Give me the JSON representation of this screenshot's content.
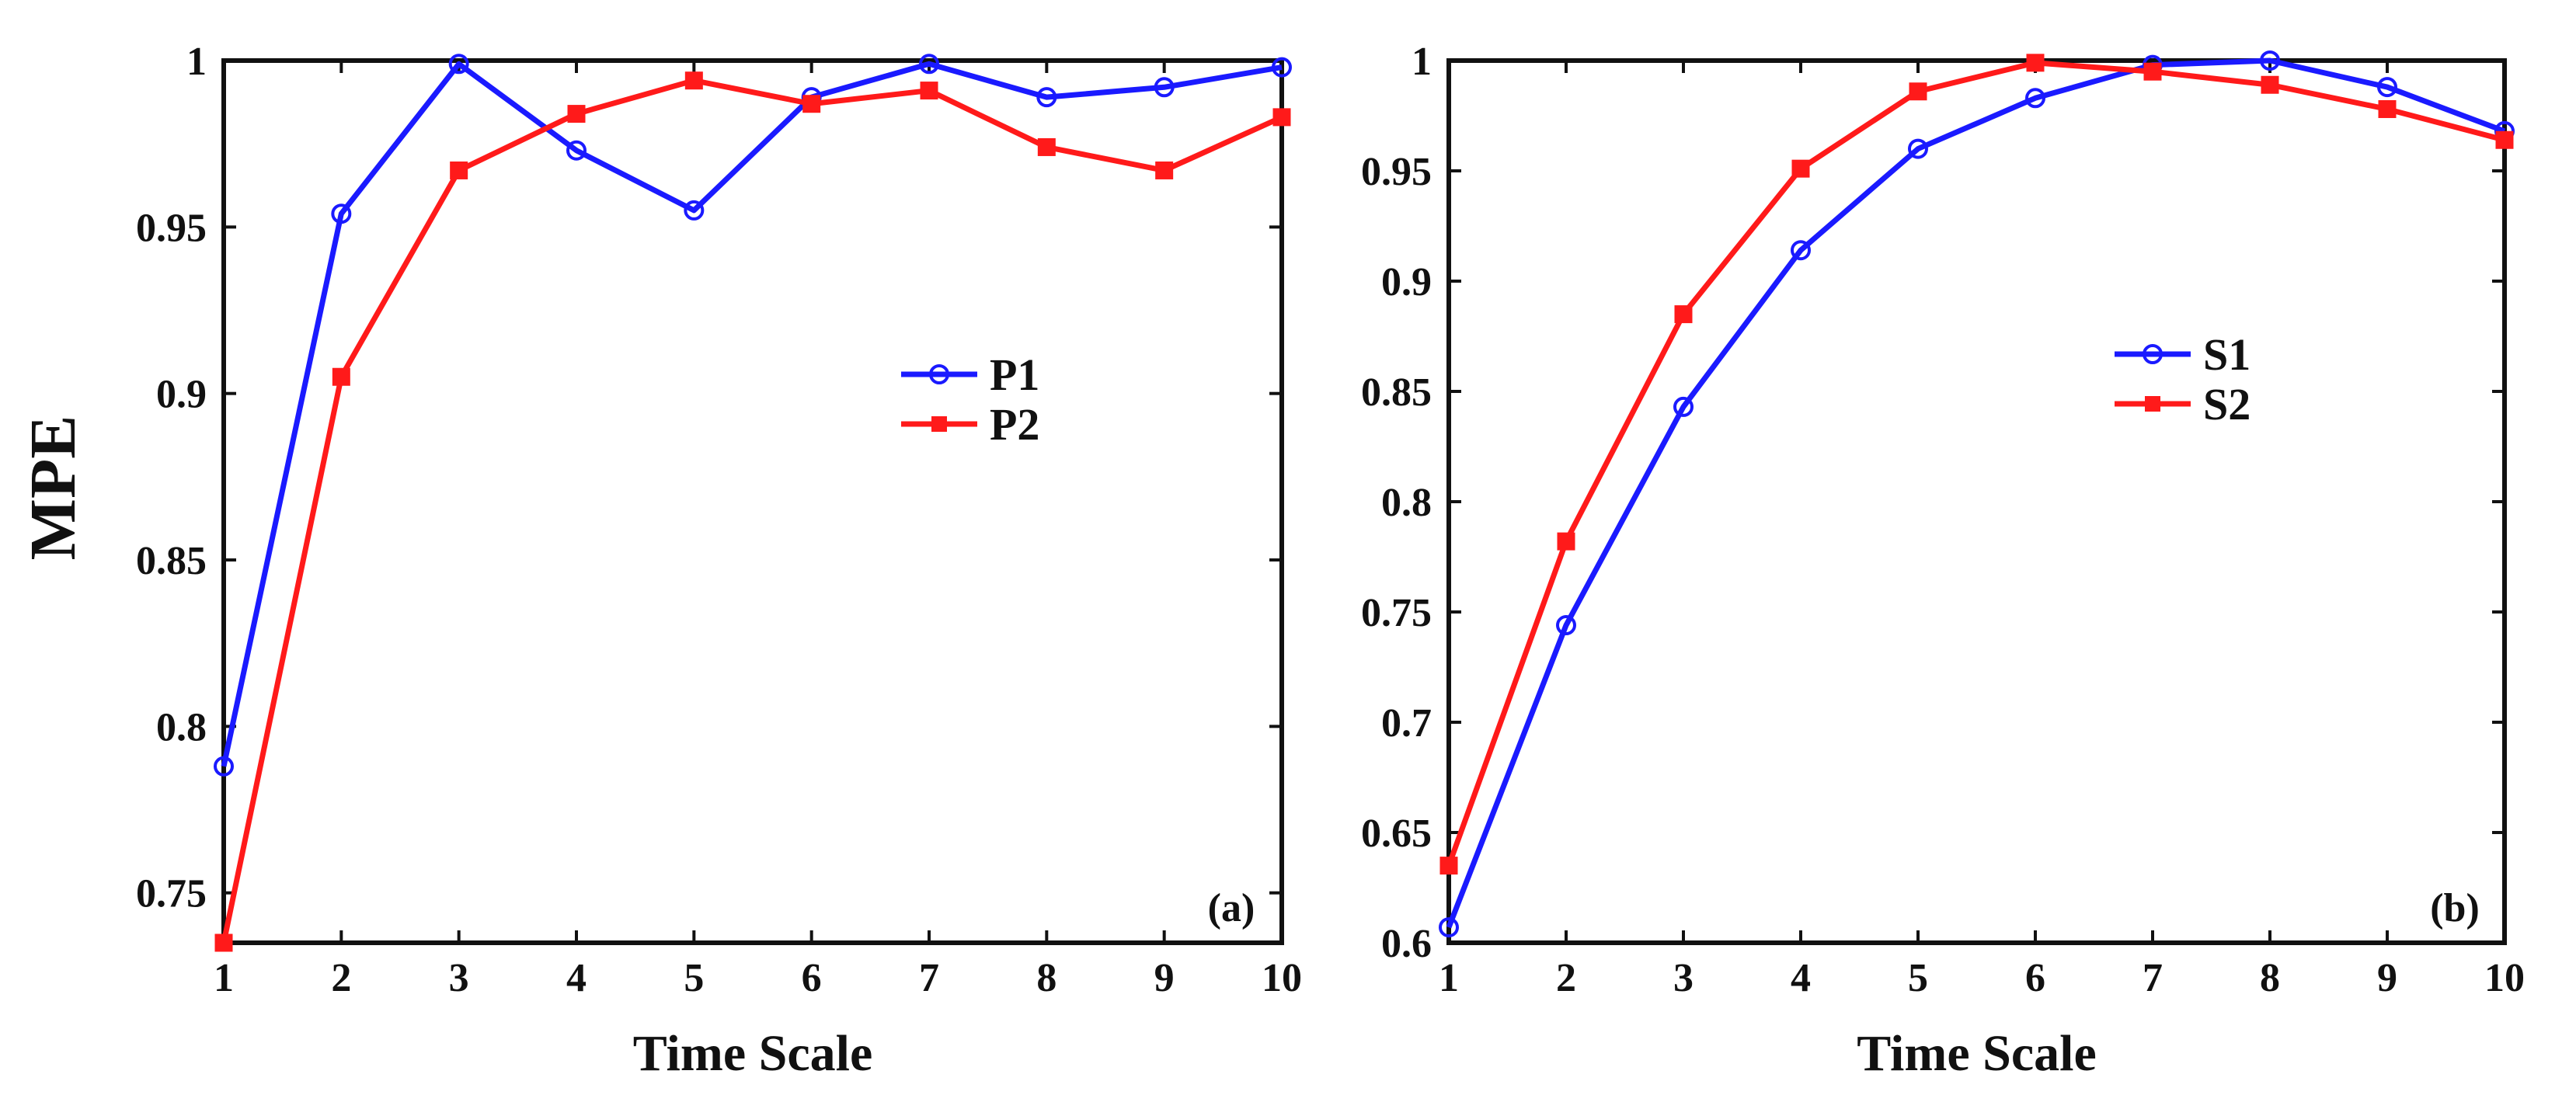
{
  "chart_data": [
    {
      "type": "line",
      "panel_label": "(a)",
      "title": "",
      "xlabel": "Time Scale",
      "ylabel": "MPE",
      "x": [
        1,
        2,
        3,
        4,
        5,
        6,
        7,
        8,
        9,
        10
      ],
      "xlim": [
        1,
        10
      ],
      "ylim": [
        0.735,
        1.0
      ],
      "xticks": [
        1,
        2,
        3,
        4,
        5,
        6,
        7,
        8,
        9,
        10
      ],
      "yticks": [
        0.75,
        0.8,
        0.85,
        0.9,
        0.95,
        1
      ],
      "ytick_labels": [
        "0.75",
        "0.8",
        "0.85",
        "0.9",
        "0.95",
        "1"
      ],
      "legend_position": "center-right",
      "series": [
        {
          "name": "P1",
          "color": "#1a1aff",
          "marker": "circle",
          "values": [
            0.788,
            0.954,
            0.999,
            0.973,
            0.955,
            0.989,
            0.999,
            0.989,
            0.992,
            0.998
          ]
        },
        {
          "name": "P2",
          "color": "#ff1a1a",
          "marker": "square",
          "values": [
            0.735,
            0.905,
            0.967,
            0.984,
            0.994,
            0.987,
            0.991,
            0.974,
            0.967,
            0.983
          ]
        }
      ]
    },
    {
      "type": "line",
      "panel_label": "(b)",
      "title": "",
      "xlabel": "Time Scale",
      "ylabel": "",
      "x": [
        1,
        2,
        3,
        4,
        5,
        6,
        7,
        8,
        9,
        10
      ],
      "xlim": [
        1,
        10
      ],
      "ylim": [
        0.6,
        1.0
      ],
      "xticks": [
        1,
        2,
        3,
        4,
        5,
        6,
        7,
        8,
        9,
        10
      ],
      "yticks": [
        0.6,
        0.65,
        0.7,
        0.75,
        0.8,
        0.85,
        0.9,
        0.95,
        1
      ],
      "ytick_labels": [
        "0.6",
        "0.65",
        "0.7",
        "0.75",
        "0.8",
        "0.85",
        "0.9",
        "0.95",
        "1"
      ],
      "legend_position": "upper-right",
      "series": [
        {
          "name": "S1",
          "color": "#1a1aff",
          "marker": "circle",
          "values": [
            0.607,
            0.744,
            0.843,
            0.914,
            0.96,
            0.983,
            0.998,
            1.0,
            0.988,
            0.968
          ]
        },
        {
          "name": "S2",
          "color": "#ff1a1a",
          "marker": "square",
          "values": [
            0.635,
            0.782,
            0.885,
            0.951,
            0.986,
            0.999,
            0.995,
            0.989,
            0.978,
            0.964
          ]
        }
      ]
    }
  ]
}
